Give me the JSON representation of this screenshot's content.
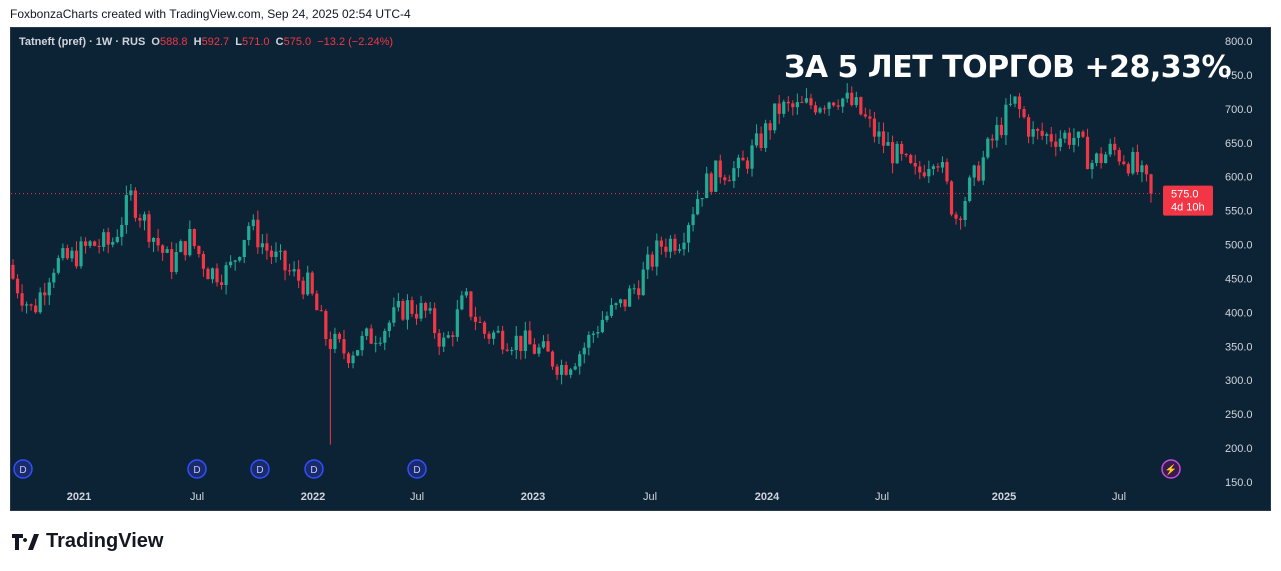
{
  "header": {
    "attribution": "FoxbonzaCharts created with TradingView.com, Sep 24, 2025 02:54 UTC-4"
  },
  "legend": {
    "symbol": "Tatneft (pref) · 1W · RUS",
    "o_label": "O",
    "o": "588.8",
    "h_label": "H",
    "h": "592.7",
    "l_label": "L",
    "l": "571.0",
    "c_label": "C",
    "c": "575.0",
    "change": "−13.2 (−2.24%)"
  },
  "headline": "ЗА 5 ЛЕТ ТОРГОВ +28,33%",
  "price_tag": {
    "price": "575.0",
    "countdown": "4d 10h"
  },
  "colors": {
    "up": "#22ab94",
    "down": "#f23645",
    "bg": "#0c2336"
  },
  "logo": "TradingView",
  "chart_data": {
    "type": "candlestick",
    "interval": "1W",
    "ylim": [
      150,
      800
    ],
    "y_ticks": [
      "800.0",
      "750.0",
      "700.0",
      "650.0",
      "600.0",
      "550.0",
      "500.0",
      "450.0",
      "400.0",
      "350.0",
      "300.0",
      "250.0",
      "200.0",
      "150.0"
    ],
    "x_ticks": [
      "2021",
      "Jul",
      "2022",
      "Jul",
      "2023",
      "Jul",
      "2024",
      "Jul",
      "2025",
      "Jul"
    ],
    "monthly_closes_approx": {
      "start": "2020-11",
      "values": [
        450,
        400,
        470,
        480,
        500,
        500,
        570,
        520,
        470,
        510,
        460,
        460,
        530,
        490,
        460,
        440,
        360,
        340,
        360,
        380,
        410,
        400,
        350,
        420,
        370,
        365,
        355,
        340,
        320,
        345,
        390,
        410,
        450,
        500,
        510,
        580,
        610,
        610,
        650,
        700,
        700,
        710,
        720,
        700,
        660,
        630,
        600,
        640,
        540,
        600,
        660,
        710,
        660,
        660,
        660,
        620,
        640,
        620,
        575
      ]
    },
    "last_close": 575.0,
    "min_low": 205,
    "markers": [
      "D",
      "D",
      "D",
      "D",
      "D",
      "⚡"
    ]
  }
}
